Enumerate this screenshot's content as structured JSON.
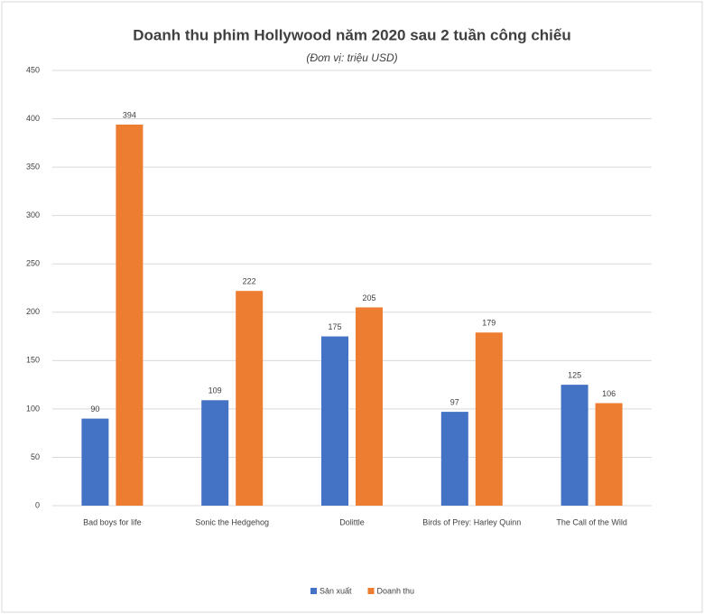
{
  "chart_data": {
    "type": "bar",
    "title": "Doanh thu phim Hollywood năm 2020 sau 2 tuần công chiếu",
    "subtitle": "(Đơn vị: triệu USD)",
    "categories": [
      "Bad boys for life",
      "Sonic the Hedgehog",
      "Dolittle",
      "Birds of Prey: Harley Quinn",
      "The Call of the Wild"
    ],
    "series": [
      {
        "name": "Sản xuất",
        "color": "#4472c4",
        "values": [
          90,
          109,
          175,
          97,
          125
        ]
      },
      {
        "name": "Doanh thu",
        "color": "#ed7d31",
        "values": [
          394,
          222,
          205,
          179,
          106
        ]
      }
    ],
    "ylim": [
      0,
      450
    ],
    "yticks": [
      0,
      50,
      100,
      150,
      200,
      250,
      300,
      350,
      400,
      450
    ],
    "grid": true,
    "legend": "bottom"
  }
}
